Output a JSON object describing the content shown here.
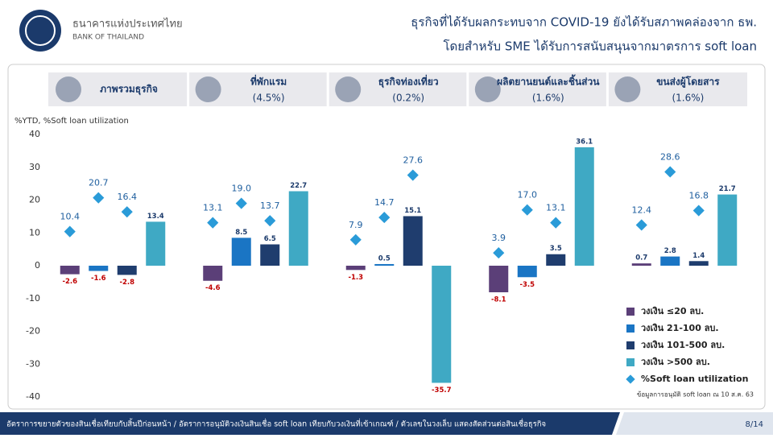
{
  "header": {
    "org_th": "ธนาคารแห่งประเทศไทย",
    "org_en": "BANK OF THAILAND",
    "title_line1": "ธุรกิจที่ได้รับผลกระทบจาก COVID-19 ยังได้รับสภาพคล่องจาก ธพ.",
    "title_line2": "โดยสำหรับ SME ได้รับการสนับสนุนจากมาตรการ soft loan"
  },
  "chart_data": {
    "type": "bar",
    "y_label": "%YTD, %Soft loan utilization",
    "categories": [
      "ภาพรวมธุรกิจ",
      "ที่พักแรม",
      "ธุรกิจท่องเที่ยว",
      "ผลิตยานยนต์และชิ้นส่วน",
      "ขนส่งผู้โดยสาร"
    ],
    "category_shares": [
      null,
      "(4.5%)",
      "(0.2%)",
      "(1.6%)",
      "(1.6%)"
    ],
    "series": [
      {
        "name": "วงเงิน ≤20 ลบ.",
        "color": "#5b3f78",
        "values": [
          -2.6,
          -4.6,
          -1.3,
          -8.1,
          0.7
        ]
      },
      {
        "name": "วงเงิน 21-100 ลบ.",
        "color": "#1a75c4",
        "values": [
          -1.6,
          8.5,
          0.5,
          -3.5,
          2.8
        ]
      },
      {
        "name": "วงเงิน 101-500 ลบ.",
        "color": "#1f3d6e",
        "values": [
          -2.8,
          6.5,
          15.1,
          3.5,
          1.4
        ]
      },
      {
        "name": "วงเงิน >500 ลบ.",
        "color": "#3fa9c4",
        "values": [
          13.4,
          22.7,
          -35.7,
          36.1,
          21.7
        ]
      }
    ],
    "utilization": {
      "name": "%Soft loan utilization",
      "color": "#2a9bd8",
      "values": [
        [
          10.4,
          20.7,
          16.4
        ],
        [
          13.1,
          19.0,
          13.7
        ],
        [
          7.9,
          14.7,
          27.6
        ],
        [
          3.9,
          17.0,
          13.1
        ],
        [
          12.4,
          28.6,
          16.8
        ]
      ],
      "value_labels": [
        [
          "10.4",
          "20.7",
          "16.4"
        ],
        [
          "13.1",
          "19.0",
          "13.7"
        ],
        [
          "7.9",
          "14.7",
          "27.6"
        ],
        [
          "3.9",
          "17.0",
          "13.1"
        ],
        [
          "12.4",
          "28.6",
          "16.8"
        ]
      ]
    },
    "ylim": [
      -40,
      40
    ],
    "yticks": [
      -40,
      -30,
      -20,
      -10,
      0,
      10,
      20,
      30,
      40
    ],
    "note": "ข้อมูลการอนุมัติ soft loan ณ 10 ส.ค. 63"
  },
  "footer": {
    "text": "อัตราการขยายตัวของสินเชื่อเทียบกับสิ้นปีก่อนหน้า / อัตราการอนุมัติวงเงินสินเชื่อ soft loan เทียบกับวงเงินที่เข้าเกณฑ์ / ตัวเลขในวงเล็บ แสดงสัดส่วนต่อสินเชื่อธุรกิจ",
    "page": "8/14"
  }
}
